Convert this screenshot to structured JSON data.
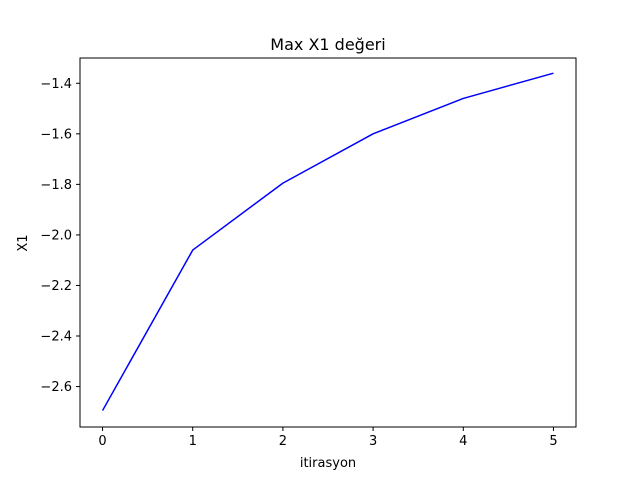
{
  "chart_data": {
    "type": "line",
    "title": "Max X1  değeri",
    "xlabel": "itirasyon",
    "ylabel": "X1",
    "x": [
      0,
      1,
      2,
      3,
      4,
      5
    ],
    "series": [
      {
        "values": [
          -2.695,
          -2.06,
          -1.795,
          -1.6,
          -1.46,
          -1.36
        ],
        "color": "#0000ff"
      }
    ],
    "xlim": [
      -0.25,
      5.25
    ],
    "ylim": [
      -2.76,
      -1.3
    ],
    "xticks": [
      0,
      1,
      2,
      3,
      4,
      5
    ],
    "xtick_labels": [
      "0",
      "1",
      "2",
      "3",
      "4",
      "5"
    ],
    "yticks": [
      -2.6,
      -2.4,
      -2.2,
      -2.0,
      -1.8,
      -1.6,
      -1.4
    ],
    "ytick_labels": [
      "−2.6",
      "−2.4",
      "−2.2",
      "−2.0",
      "−1.8",
      "−1.6",
      "−1.4"
    ],
    "grid": false,
    "legend": false
  }
}
